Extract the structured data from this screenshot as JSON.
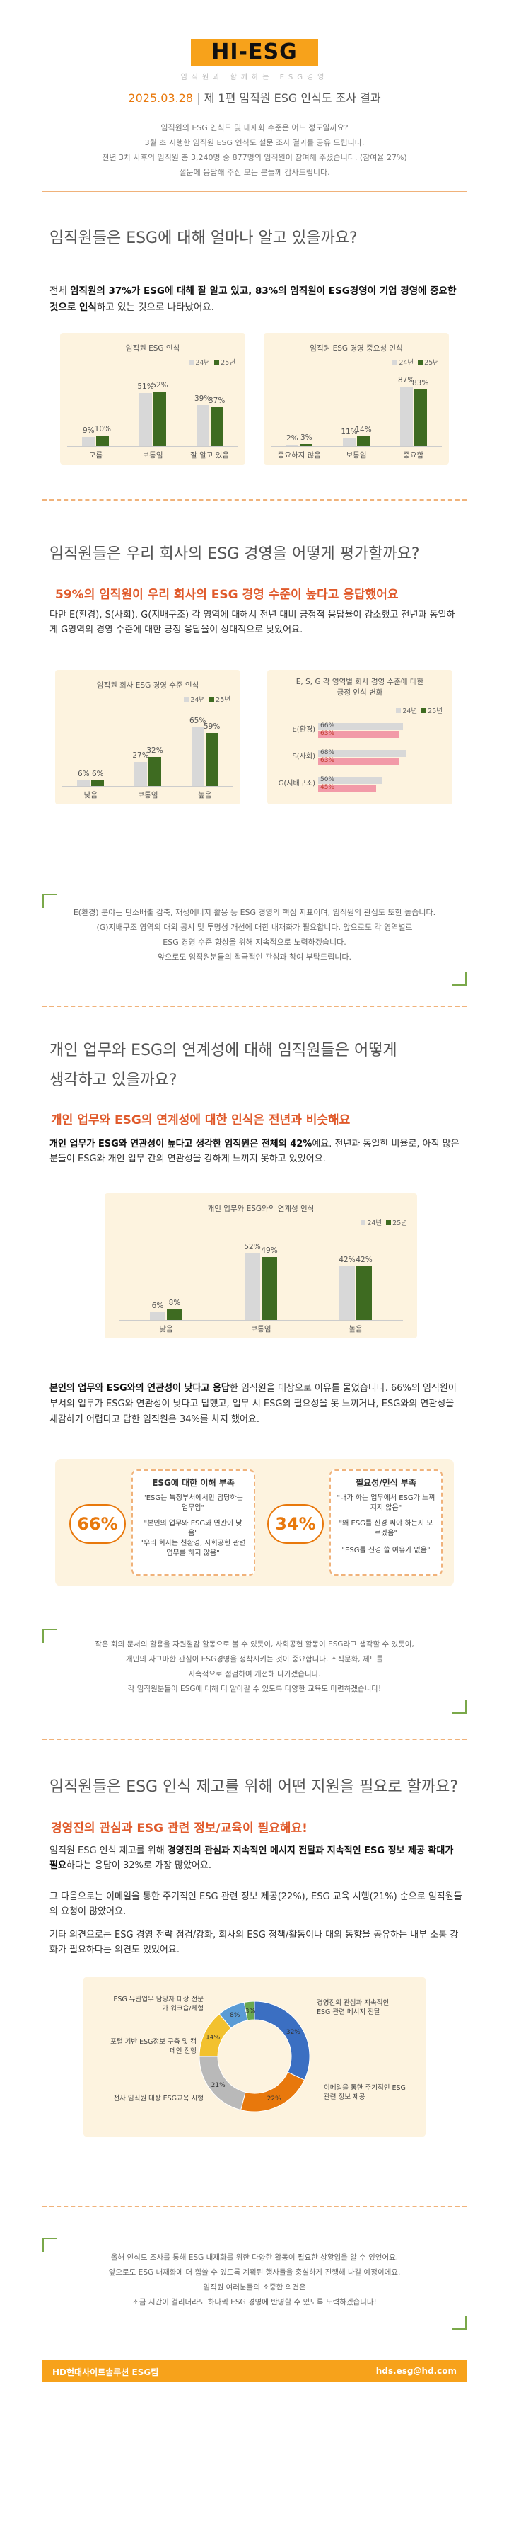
{
  "header": {
    "logo": "HI-ESG",
    "tagline": "임직원과 함께하는 ESG경영",
    "issue_date": "2025.03.28",
    "issue_title": "제 1편 임직원 ESG 인식도 조사 결과",
    "intro": [
      "임직원의 ESG 인식도 및 내재화 수준은 어느 정도일까요?",
      "3월 초 시행한 임직원 ESG 인식도 설문 조사 결과를 공유 드립니다.",
      "전년 3차 사후의 임직원 총 3,240명 중 877명의 임직원이 참여해 주셨습니다. (참여율 27%)",
      "설문에 응답해 주신 모든 분들께 감사드립니다."
    ]
  },
  "q1": {
    "title": "임직원들은 ESG에 대해 얼마나 알고 있을까요?",
    "para_pre": "전체 ",
    "para_b1": "임직원의 37%가 ESG에 대해 잘 알고 있고, 83%의 임직원이 ESG경영이 기업 경영에 중요한 것으로 인식",
    "para_post": "하고 있는 것으로 나타났어요."
  },
  "q2": {
    "title": "임직원들은 우리 회사의 ESG 경영을 어떻게 평가할까요?",
    "highlight": "59%의 임직원이 우리 회사의 ESG 경영 수준이 높다고 응답했어요",
    "para": "다만 E(환경), S(사회), G(지배구조) 각 영역에 대해서 전년 대비 긍정적 응답율이 감소했고 전년과 동일하게 G영역의 경영 수준에 대한 긍정 응답율이 상대적으로 낮았어요.",
    "quote": [
      "E(환경) 분야는 탄소배출 감축, 재생에너지 활용 등 ESG 경영의 핵심 지표이며, 임직원의 관심도 또한 높습니다.",
      "(G)지배구조 영역의 대외 공시 및 투명성 개선에 대한 내재화가 필요합니다. 앞으로도 각 영역별로",
      "ESG 경영 수준 향상을 위해 지속적으로 노력하겠습니다.",
      "앞으로도 임직원분들의 적극적인 관심과 참여 부탁드립니다."
    ]
  },
  "q3": {
    "title1": "개인 업무와 ESG의 연계성에 대해 임직원들은 어떻게",
    "title2": "생각하고 있을까요?",
    "highlight": "개인 업무와 ESG의 연계성에 대한 인식은 전년과 비슷해요",
    "para1_b": "개인 업무가 ESG와 연관성이 높다고 생각한 임직원은 전체의 42%",
    "para1_post": "예요. 전년과 동일한 비율로, 아직 많은 분들이 ESG와 개인 업무 간의 연관성을 강하게 느끼지 못하고 있었어요.",
    "para2_b": "본인의 업무와 ESG와의 연관성이 낮다고 응답",
    "para2_post": "한 임직원을 대상으로 이유를 물었습니다. 66%의 임직원이 부서의 업무가 ESG와 연관성이 낮다고 답했고, 업무 시 ESG의 필요성을 못 느끼거나, ESG와의 연관성을 체감하기 어렵다고 답한 임직원은 34%를 차지 했어요.",
    "op1": {
      "pct": "66%",
      "head": "ESG에 대한 이해 부족",
      "items": [
        "\"ESG는 특정부서에서만 담당하는 업무임\"",
        "\"본인의 업무와 ESG와 연관이 낮음\"",
        "\"우리 회사는 친환경, 사회공헌 관련 업무를 하지 않음\""
      ]
    },
    "op2": {
      "pct": "34%",
      "head": "필요성/인식 부족",
      "items": [
        "\"내가 하는 업무에서 ESG가 느껴지지 않음\"",
        "\"왜 ESG를 신경 써야 하는지 모르겠음\"",
        "\"ESG를 신경 쓸 여유가 없음\""
      ]
    },
    "quote": [
      "작은 회의 문서의 활용을 자원절감 활동으로 볼 수 있듯이, 사회공헌 활동이 ESG라고 생각할 수 있듯이,",
      "개인의 자그마한 관심이 ESG경영을 정착시키는 것이 중요합니다. 조직문화, 제도를",
      "지속적으로 점검하여 개선해 나가겠습니다.",
      "각 임직원분들이 ESG에 대해 더 알아갈 수 있도록 다양한 교육도 마련하겠습니다!"
    ]
  },
  "q4": {
    "title": "임직원들은 ESG 인식 제고를 위해 어떤 지원을 필요로 할까요?",
    "highlight": "경영진의 관심과 ESG 관련 정보/교육이 필요해요!",
    "para1_pre": "임직원 ESG 인식 제고를 위해 ",
    "para1_b": "경영진의 관심과 지속적인 메시지 전달과 지속적인 ESG 정보 제공 확대가 필요",
    "para1_post": "하다는 응답이 32%로 가장 많았어요.",
    "para2": "그 다음으로는 이메일을 통한 주기적인 ESG 관련 정보 제공(22%), ESG 교육 시행(21%) 순으로 임직원들의 요청이 많았어요.",
    "para3": "기타 의견으로는 ESG 경영 전략 점검/강화, 회사의 ESG 정책/활동이나 대외 동향을 공유하는 내부 소통 강화가 필요하다는 의견도 있었어요.",
    "quote": [
      "올해 인식도 조사를 통해 ESG 내재화를 위한 다양한 활동이 필요한 상황임을 알 수 있었어요.",
      "앞으로도 ESG 내재화에 더 힘쓸 수 있도록 계획된 행사들을 충실하게 진행해 나갈 예정이에요.",
      "임직원 여러분들의 소중한 의견은",
      "조금 시간이 걸리더라도 하나씩 ESG 경영에 반영할 수 있도록 노력하겠습니다!"
    ]
  },
  "footer": {
    "left": "HD현대사이트솔루션 ESG팀",
    "right": "hds.esg@hd.com"
  },
  "legend": {
    "y24": "24년",
    "y25": "25년"
  },
  "colors": {
    "c24": "#d8d8d8",
    "c25": "#3e6b21",
    "orange": "#e8780c",
    "bg": "#fdf3df"
  },
  "chart_data": [
    {
      "type": "bar",
      "title": "임직원 ESG 인식",
      "categories": [
        "모름",
        "보통임",
        "잘 알고 있음"
      ],
      "series": [
        {
          "name": "24년",
          "values": [
            9,
            51,
            39
          ]
        },
        {
          "name": "25년",
          "values": [
            10,
            52,
            37
          ]
        }
      ],
      "labels24": [
        "9%",
        "51%",
        "39%"
      ],
      "labels25": [
        "10%",
        "52%",
        "37%"
      ]
    },
    {
      "type": "bar",
      "title": "임직원 ESG 경영 중요성 인식",
      "categories": [
        "중요하지 않음",
        "보통임",
        "중요함"
      ],
      "series": [
        {
          "name": "24년",
          "values": [
            2,
            11,
            87
          ]
        },
        {
          "name": "25년",
          "values": [
            3,
            14,
            83
          ]
        }
      ],
      "labels24": [
        "2%",
        "11%",
        "87%"
      ],
      "labels25": [
        "3%",
        "14%",
        "83%"
      ]
    },
    {
      "type": "bar",
      "title": "임직원 회사 ESG 경영 수준 인식",
      "categories": [
        "낮음",
        "보통임",
        "높음"
      ],
      "series": [
        {
          "name": "24년",
          "values": [
            6,
            27,
            65
          ]
        },
        {
          "name": "25년",
          "values": [
            6,
            32,
            59
          ]
        }
      ],
      "labels24": [
        "6%",
        "27%",
        "65%"
      ],
      "labels25": [
        "6%",
        "32%",
        "59%"
      ]
    },
    {
      "type": "bar",
      "orientation": "horizontal",
      "title1": "E, S, G 각 영역별 회사 경영 수준에 대한",
      "title2": "긍정 인식 변화",
      "categories": [
        "E(환경)",
        "S(사회)",
        "G(지배구조)"
      ],
      "series": [
        {
          "name": "24년",
          "values": [
            66,
            68,
            50
          ]
        },
        {
          "name": "25년",
          "values": [
            63,
            63,
            45
          ]
        }
      ],
      "labels24": [
        "66%",
        "68%",
        "50%"
      ],
      "labels25": [
        "63%",
        "63%",
        "45%"
      ]
    },
    {
      "type": "bar",
      "title": "개인 업무와 ESG와의 연계성 인식",
      "categories": [
        "낮음",
        "보통임",
        "높음"
      ],
      "series": [
        {
          "name": "24년",
          "values": [
            6,
            52,
            42
          ]
        },
        {
          "name": "25년",
          "values": [
            8,
            49,
            42
          ]
        }
      ],
      "labels24": [
        "6%",
        "52%",
        "42%"
      ],
      "labels25": [
        "8%",
        "49%",
        "42%"
      ]
    },
    {
      "type": "pie",
      "categories": [
        "경영진의 관심과 지속적인 ESG 관련 메시지 전달",
        "이메일을 통한 주기적인 ESG관련 정보 제공",
        "전사 임직원 대상 ESG교육 시행",
        "포털 기반 ESG정보 구축 및 캠페인 진행",
        "ESG 유관업무 담당자 대상 전문가 워크숍/체험",
        "기타"
      ],
      "values": [
        32,
        22,
        21,
        14,
        8,
        3
      ],
      "labels": [
        "32%",
        "22%",
        "21%",
        "14%",
        "8%",
        "3%"
      ],
      "colors": [
        "#3b6fc2",
        "#e8780c",
        "#b9b9b9",
        "#f2c12e",
        "#5a9bd5",
        "#6aa84f"
      ]
    }
  ]
}
